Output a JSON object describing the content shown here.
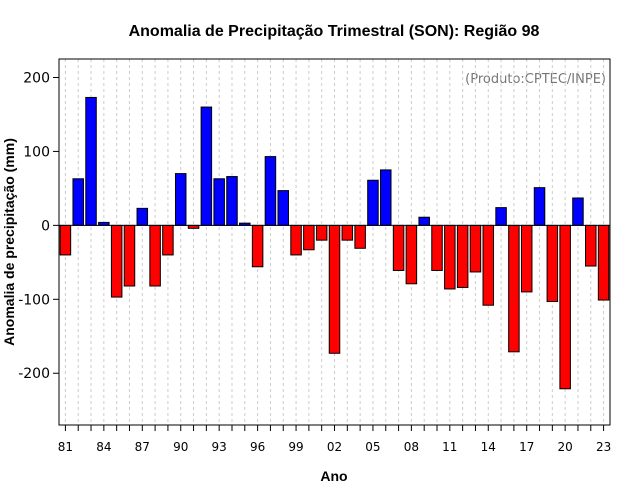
{
  "chart_data": {
    "type": "bar",
    "title": "Anomalia de Precipitação Trimestral (SON): Região 98",
    "xlabel": "Ano",
    "ylabel": "Anomalia de precipitação (mm)",
    "credit": "(Produto:CPTEC/INPE)",
    "ylim": [
      -270,
      225
    ],
    "y_ticks": [
      -200,
      -100,
      0,
      100,
      200
    ],
    "x_tick_labels": [
      "81",
      "84",
      "87",
      "90",
      "93",
      "96",
      "99",
      "02",
      "05",
      "08",
      "11",
      "14",
      "17",
      "20",
      "23"
    ],
    "positive_color": "#0000ff",
    "negative_color": "#ff0000",
    "grid": true,
    "years": [
      "1981",
      "1982",
      "1983",
      "1984",
      "1985",
      "1986",
      "1987",
      "1988",
      "1989",
      "1990",
      "1991",
      "1992",
      "1993",
      "1994",
      "1995",
      "1996",
      "1997",
      "1998",
      "1999",
      "2000",
      "2001",
      "2002",
      "2003",
      "2004",
      "2005",
      "2006",
      "2007",
      "2008",
      "2009",
      "2010",
      "2011",
      "2012",
      "2013",
      "2014",
      "2015",
      "2016",
      "2017",
      "2018",
      "2019",
      "2020",
      "2021",
      "2022",
      "2023"
    ],
    "values": [
      -40,
      63,
      173,
      4,
      -97,
      -82,
      23,
      -82,
      -40,
      70,
      -4,
      160,
      63,
      66,
      3,
      -56,
      93,
      47,
      -40,
      -33,
      -20,
      -173,
      -20,
      -31,
      61,
      75,
      -61,
      -79,
      11,
      -61,
      -86,
      -84,
      -63,
      -108,
      24,
      -171,
      -90,
      51,
      -103,
      -221,
      37,
      -55,
      -101
    ]
  }
}
